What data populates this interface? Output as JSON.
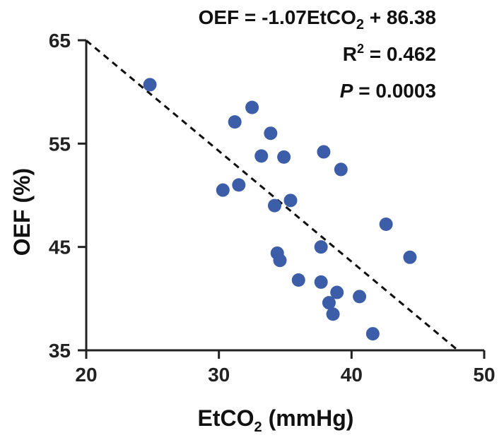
{
  "chart_data": {
    "type": "scatter",
    "title": "",
    "xlabel": "EtCO",
    "xlabel_sub": "2",
    "xlabel_suffix": " (mmHg)",
    "ylabel": "OEF (%)",
    "xlim": [
      20,
      50
    ],
    "ylim": [
      35,
      65
    ],
    "xticks": [
      20,
      30,
      40,
      50
    ],
    "yticks": [
      35,
      45,
      55,
      65
    ],
    "grid": false,
    "points": [
      {
        "x": 24.8,
        "y": 60.7
      },
      {
        "x": 32.5,
        "y": 58.5
      },
      {
        "x": 31.2,
        "y": 57.1
      },
      {
        "x": 33.9,
        "y": 56.0
      },
      {
        "x": 37.9,
        "y": 54.2
      },
      {
        "x": 33.2,
        "y": 53.8
      },
      {
        "x": 34.9,
        "y": 53.7
      },
      {
        "x": 39.2,
        "y": 52.5
      },
      {
        "x": 31.5,
        "y": 51.0
      },
      {
        "x": 30.3,
        "y": 50.5
      },
      {
        "x": 35.4,
        "y": 49.5
      },
      {
        "x": 34.2,
        "y": 49.0
      },
      {
        "x": 42.6,
        "y": 47.2
      },
      {
        "x": 37.7,
        "y": 45.0
      },
      {
        "x": 44.4,
        "y": 44.0
      },
      {
        "x": 34.4,
        "y": 44.4
      },
      {
        "x": 34.6,
        "y": 43.7
      },
      {
        "x": 36.0,
        "y": 41.8
      },
      {
        "x": 37.7,
        "y": 41.6
      },
      {
        "x": 38.9,
        "y": 40.6
      },
      {
        "x": 40.6,
        "y": 40.2
      },
      {
        "x": 38.3,
        "y": 39.6
      },
      {
        "x": 38.6,
        "y": 38.5
      },
      {
        "x": 41.6,
        "y": 36.6
      }
    ],
    "regression": {
      "slope": -1.07,
      "intercept": 86.38,
      "style": "dashed"
    },
    "annotations": {
      "equation_prefix": "OEF = -1.07EtCO",
      "equation_sub": "2",
      "equation_suffix": " + 86.38",
      "r2_label": "R",
      "r2_sup": "2",
      "r2_suffix": " = 0.462",
      "p_label": "P",
      "p_suffix": " = 0.0003"
    },
    "colors": {
      "points": "#3c5ea8",
      "axis": "#222222",
      "line": "#111111"
    }
  }
}
